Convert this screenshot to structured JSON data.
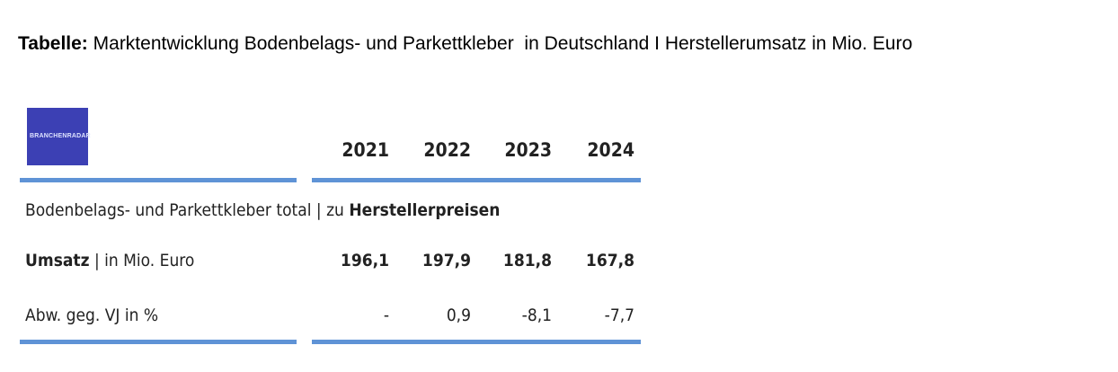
{
  "title": {
    "label": "Tabelle:",
    "text": "Marktentwicklung Bodenbelags- und Parkettkleber  in Deutschland I Herstellerumsatz in Mio. Euro"
  },
  "logo": "BRANCHENRADAR",
  "table": {
    "columns": [
      "2021",
      "2022",
      "2023",
      "2024"
    ],
    "section": {
      "text": "Bodenbelags- und Parkettkleber total | zu",
      "emphasis": "Herstellerpreisen"
    },
    "rows": [
      {
        "label": "Umsatz",
        "unit": "| in Mio. Euro",
        "values": [
          "196,1",
          "197,9",
          "181,8",
          "167,8"
        ]
      },
      {
        "label": "Abw. geg. VJ in %",
        "values": [
          "-",
          "0,9",
          "-8,1",
          "-7,7"
        ]
      }
    ]
  }
}
